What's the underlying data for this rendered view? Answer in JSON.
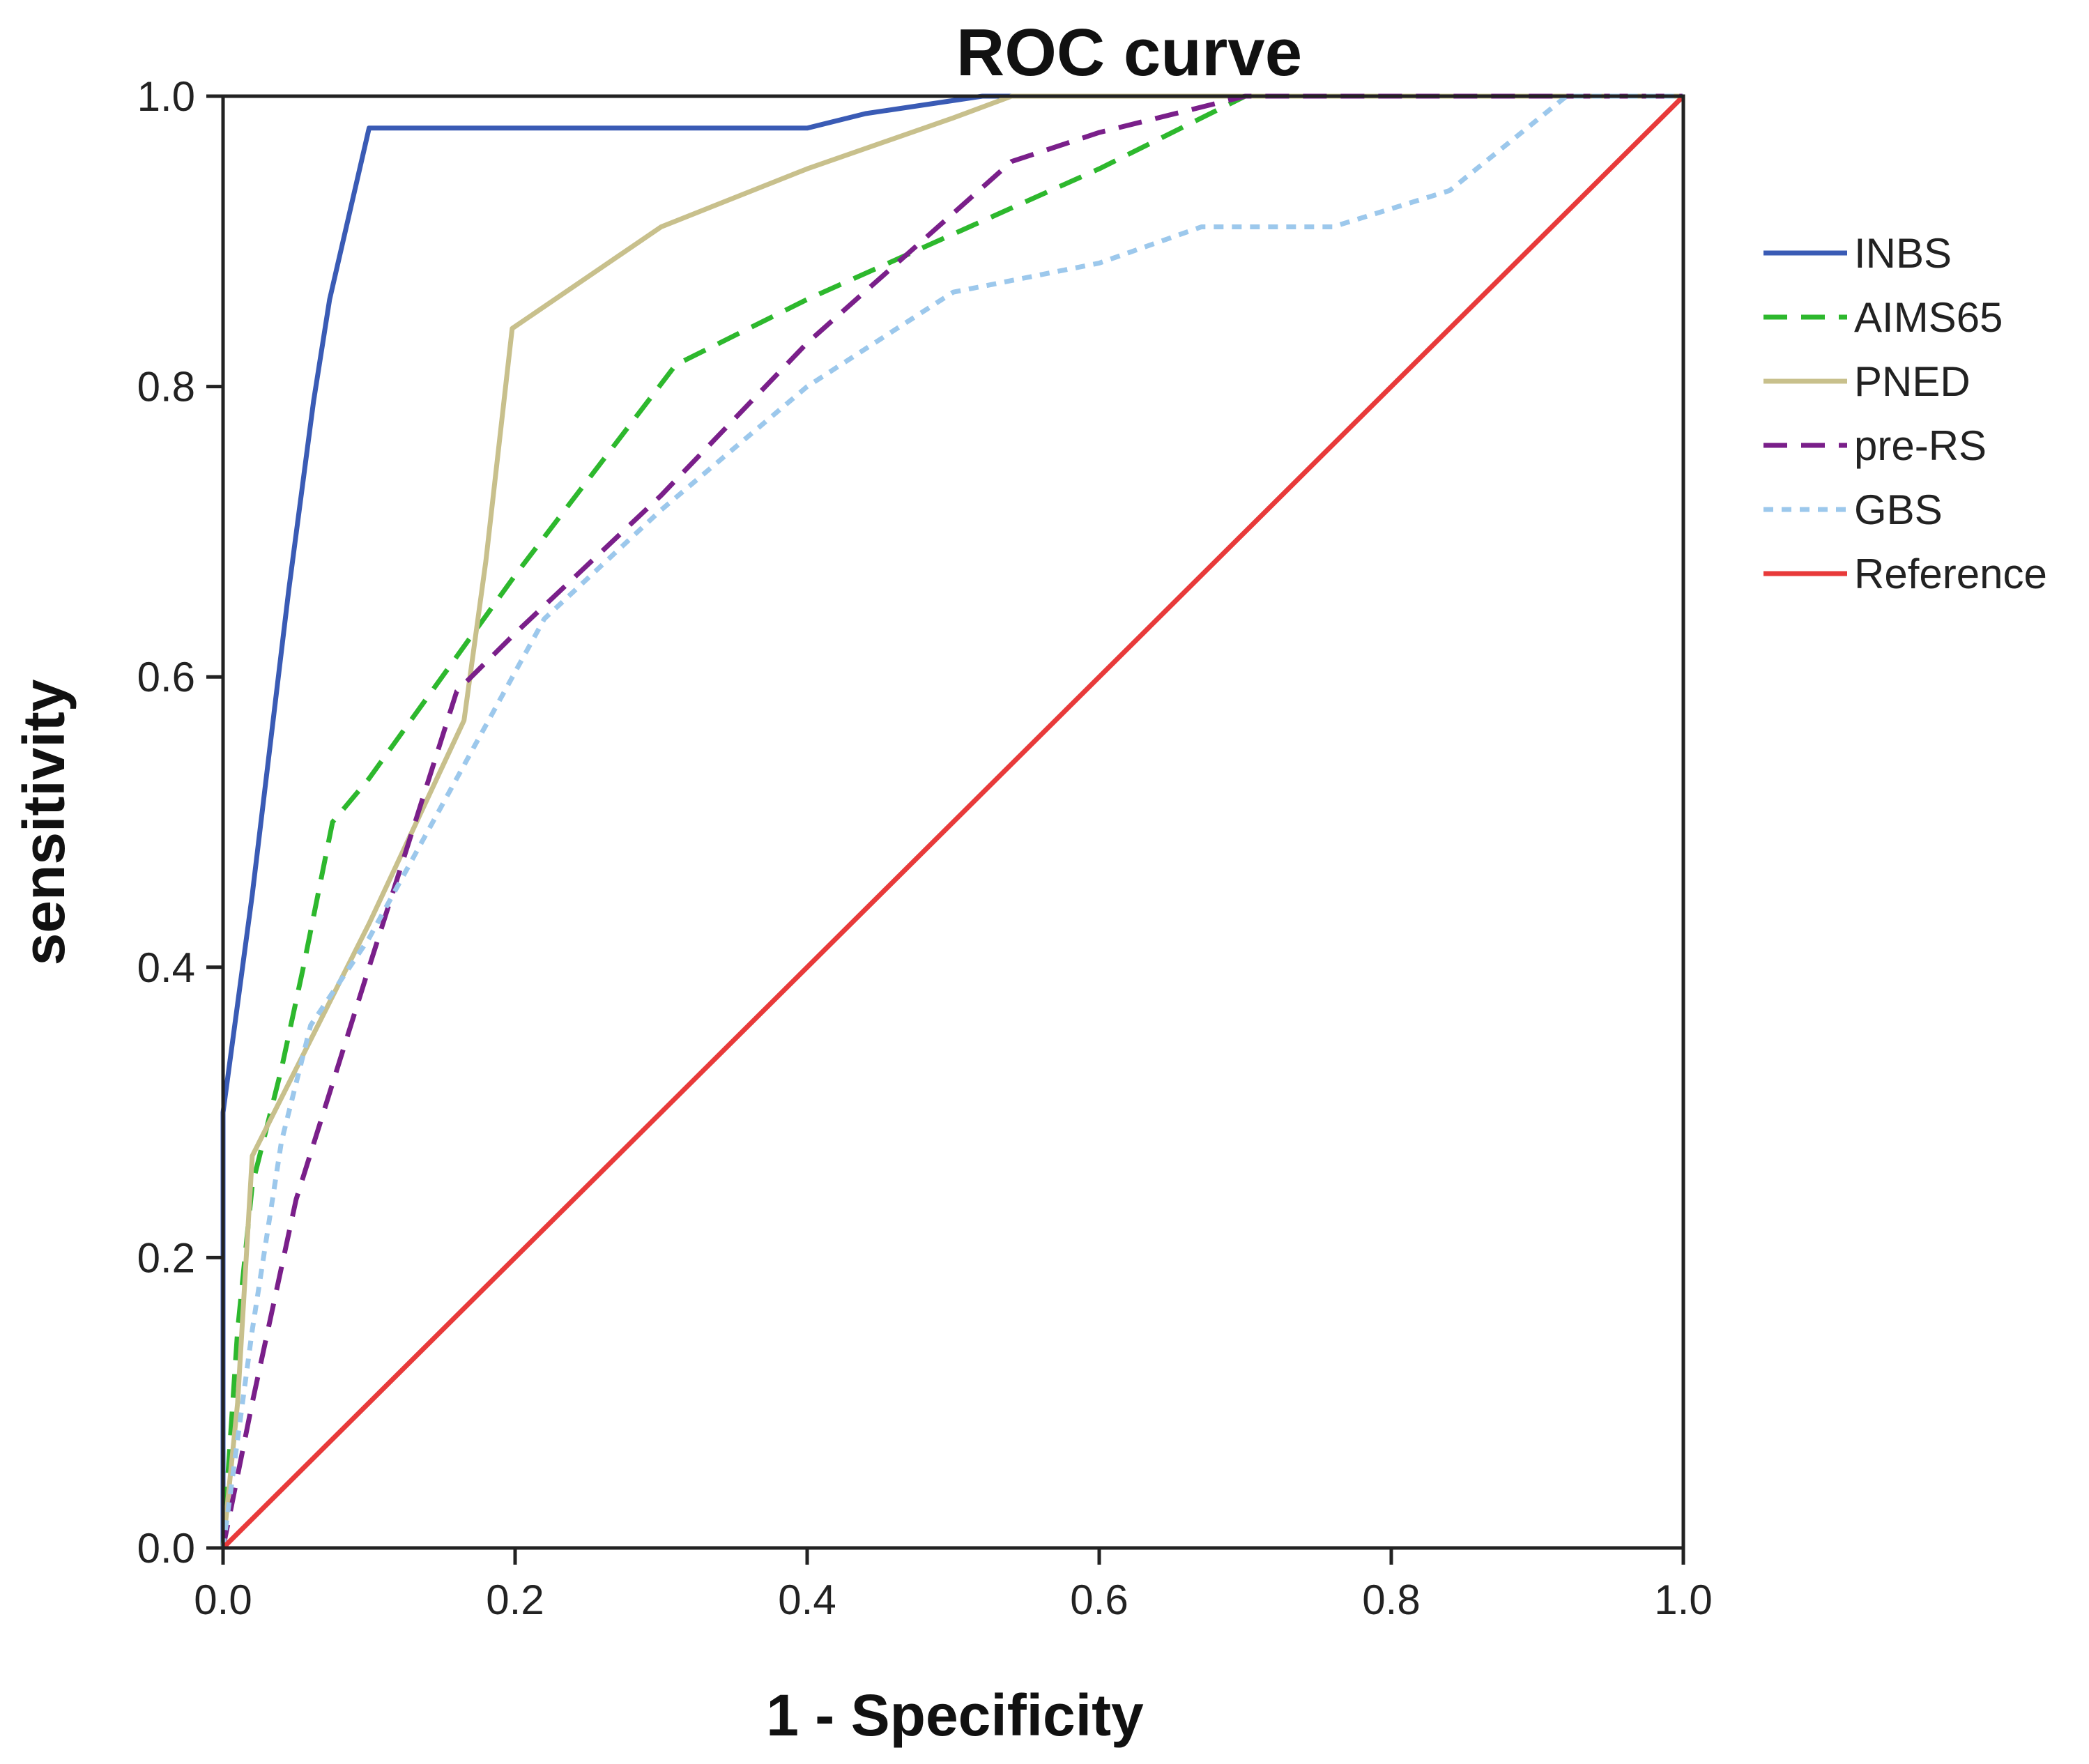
{
  "chart_data": {
    "type": "line",
    "title": "ROC curve",
    "xlabel": "1 - Specificity",
    "ylabel": "sensitivity",
    "xlim": [
      0,
      1
    ],
    "ylim": [
      0,
      1
    ],
    "xticks": [
      "0.0",
      "0.2",
      "0.4",
      "0.6",
      "0.8",
      "1.0"
    ],
    "yticks": [
      "0.0",
      "0.2",
      "0.4",
      "0.6",
      "0.8",
      "1.0"
    ],
    "legend_position": "right",
    "grid": false,
    "series": [
      {
        "name": "INBS",
        "color": "#3a5bb5",
        "dash": "solid",
        "points": [
          [
            0,
            0
          ],
          [
            0.0,
            0.3
          ],
          [
            0.02,
            0.45
          ],
          [
            0.045,
            0.66
          ],
          [
            0.062,
            0.79
          ],
          [
            0.073,
            0.86
          ],
          [
            0.1,
            0.978
          ],
          [
            0.4,
            0.978
          ],
          [
            0.44,
            0.988
          ],
          [
            0.52,
            1.0
          ],
          [
            1.0,
            1.0
          ]
        ]
      },
      {
        "name": "AIMS65",
        "color": "#2db82d",
        "dash": "dashed",
        "points": [
          [
            0,
            0
          ],
          [
            0.01,
            0.15
          ],
          [
            0.02,
            0.25
          ],
          [
            0.04,
            0.33
          ],
          [
            0.055,
            0.4
          ],
          [
            0.075,
            0.5
          ],
          [
            0.1,
            0.53
          ],
          [
            0.2,
            0.67
          ],
          [
            0.31,
            0.815
          ],
          [
            0.4,
            0.86
          ],
          [
            0.5,
            0.905
          ],
          [
            0.6,
            0.95
          ],
          [
            0.7,
            1.0
          ],
          [
            1.0,
            1.0
          ]
        ]
      },
      {
        "name": "PNED",
        "color": "#c8c08c",
        "dash": "solid",
        "points": [
          [
            0,
            0
          ],
          [
            0.01,
            0.1
          ],
          [
            0.02,
            0.27
          ],
          [
            0.035,
            0.3
          ],
          [
            0.055,
            0.34
          ],
          [
            0.1,
            0.43
          ],
          [
            0.165,
            0.57
          ],
          [
            0.18,
            0.68
          ],
          [
            0.198,
            0.84
          ],
          [
            0.3,
            0.91
          ],
          [
            0.4,
            0.95
          ],
          [
            0.5,
            0.985
          ],
          [
            0.54,
            1.0
          ],
          [
            1.0,
            1.0
          ]
        ]
      },
      {
        "name": "pre-RS",
        "color": "#7a1f8a",
        "dash": "dashed",
        "points": [
          [
            0,
            0
          ],
          [
            0.02,
            0.1
          ],
          [
            0.05,
            0.24
          ],
          [
            0.1,
            0.4
          ],
          [
            0.16,
            0.59
          ],
          [
            0.2,
            0.63
          ],
          [
            0.3,
            0.725
          ],
          [
            0.4,
            0.83
          ],
          [
            0.54,
            0.955
          ],
          [
            0.6,
            0.975
          ],
          [
            0.7,
            1.0
          ],
          [
            1.0,
            1.0
          ]
        ]
      },
      {
        "name": "GBS",
        "color": "#9cc8ec",
        "dash": "dotted",
        "points": [
          [
            0,
            0
          ],
          [
            0.02,
            0.15
          ],
          [
            0.04,
            0.28
          ],
          [
            0.06,
            0.36
          ],
          [
            0.1,
            0.42
          ],
          [
            0.16,
            0.53
          ],
          [
            0.22,
            0.64
          ],
          [
            0.3,
            0.715
          ],
          [
            0.4,
            0.8
          ],
          [
            0.5,
            0.865
          ],
          [
            0.6,
            0.885
          ],
          [
            0.67,
            0.91
          ],
          [
            0.76,
            0.91
          ],
          [
            0.84,
            0.935
          ],
          [
            0.92,
            1.0
          ],
          [
            1.0,
            1.0
          ]
        ]
      },
      {
        "name": "Reference",
        "color": "#e83a3a",
        "dash": "solid",
        "points": [
          [
            0,
            0
          ],
          [
            1,
            1
          ]
        ]
      }
    ]
  }
}
